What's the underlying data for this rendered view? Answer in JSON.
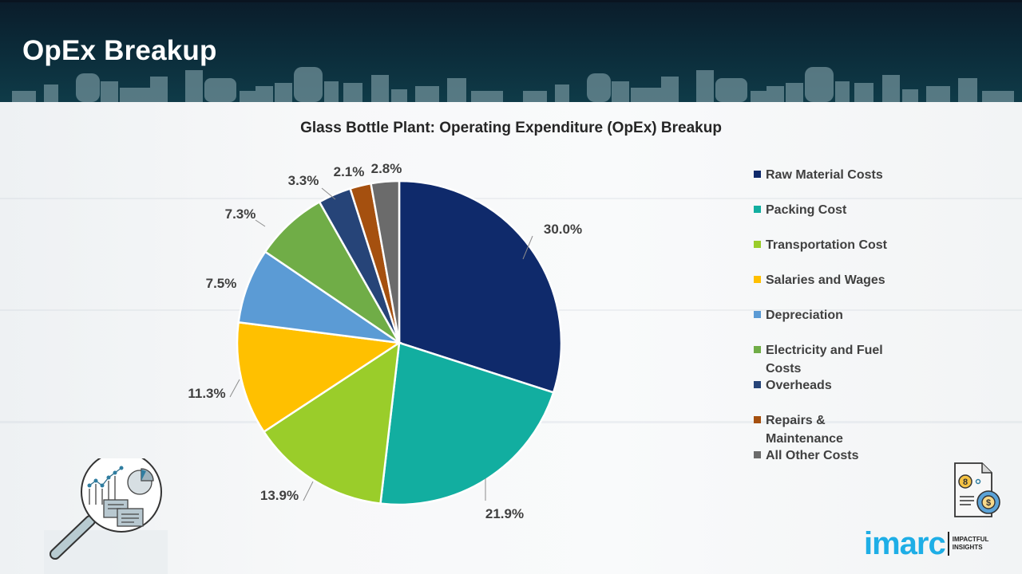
{
  "header": {
    "title": "OpEx Breakup"
  },
  "chart_data": {
    "type": "pie",
    "title": "Glass Bottle Plant: Operating Expenditure (OpEx) Breakup",
    "start_angle": "12 o'clock",
    "direction": "clockwise",
    "legend_position": "right",
    "slices": [
      {
        "label": "Raw Material Costs",
        "value": 30.0,
        "display": "30.0%",
        "color": "#0f2a6b"
      },
      {
        "label": "Packing Cost",
        "value": 21.9,
        "display": "21.9%",
        "color": "#12aea0"
      },
      {
        "label": "Transportation Cost",
        "value": 13.9,
        "display": "13.9%",
        "color": "#9acd2a"
      },
      {
        "label": "Salaries and Wages",
        "value": 11.3,
        "display": "11.3%",
        "color": "#ffc000"
      },
      {
        "label": "Depreciation",
        "value": 7.5,
        "display": "7.5%",
        "color": "#5b9bd5"
      },
      {
        "label": "Electricity and Fuel Costs",
        "value": 7.3,
        "display": "7.3%",
        "color": "#70ad47"
      },
      {
        "label": "Overheads",
        "value": 3.3,
        "display": "3.3%",
        "color": "#264478"
      },
      {
        "label": "Repairs & Maintenance",
        "value": 2.1,
        "display": "2.1%",
        "color": "#a5500f"
      },
      {
        "label": "All Other Costs",
        "value": 2.8,
        "display": "2.8%",
        "color": "#6b6b6b"
      }
    ],
    "legend": [
      {
        "line1": "Raw Material Costs",
        "line2": ""
      },
      {
        "line1": "Packing Cost",
        "line2": ""
      },
      {
        "line1": "Transportation Cost",
        "line2": ""
      },
      {
        "line1": "Salaries and Wages",
        "line2": ""
      },
      {
        "line1": "Depreciation",
        "line2": ""
      },
      {
        "line1": "Electricity and Fuel",
        "line2": "Costs"
      },
      {
        "line1": "Overheads",
        "line2": ""
      },
      {
        "line1": "Repairs &",
        "line2": "Maintenance"
      },
      {
        "line1": "All Other Costs",
        "line2": ""
      }
    ]
  },
  "icons": {
    "left": "magnifier-analytics-icon",
    "right": "cost-document-gear-icon"
  },
  "brand": {
    "name": "imarc",
    "tagline_1": "IMPACTFUL",
    "tagline_2": "INSIGHTS",
    "color": "#1eaee6"
  }
}
